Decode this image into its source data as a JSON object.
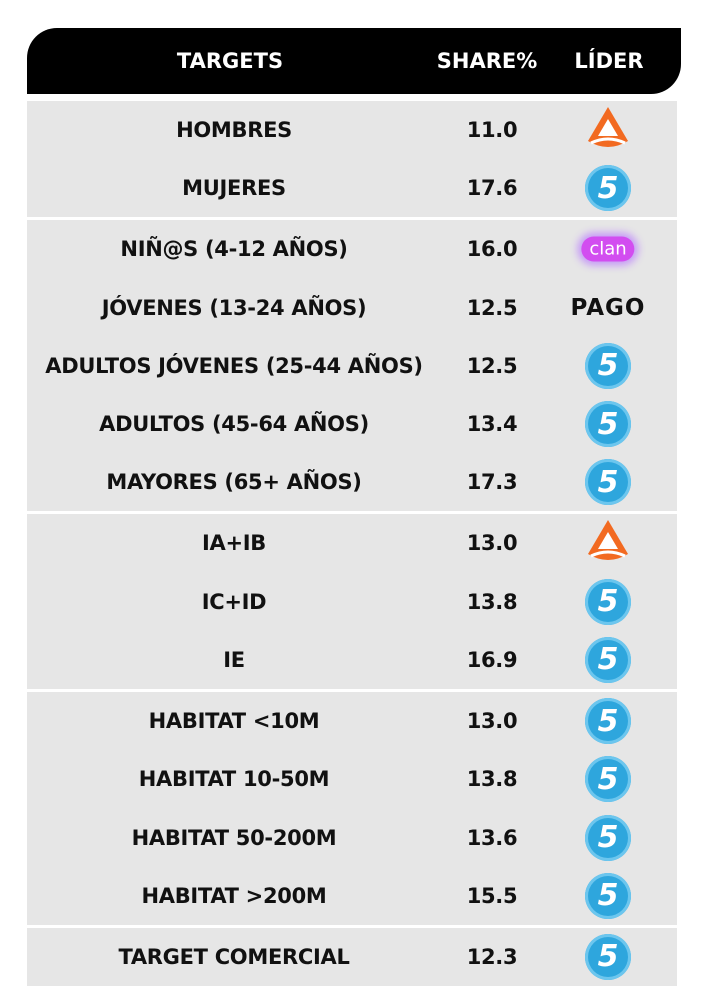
{
  "header": {
    "targets": "TARGETS",
    "share": "SHARE%",
    "leader": "LÍDER"
  },
  "groups": [
    {
      "rows": [
        {
          "target": "HOMBRES",
          "share": "11.0",
          "leader": null
        },
        {
          "target": "MUJERES",
          "share": "17.6",
          "leader": "5"
        }
      ]
    },
    {
      "rows": [
        {
          "target": "NIÑ@S (4-12 AÑOS)",
          "share": "16.0",
          "leader": "clan"
        },
        {
          "target": "JÓVENES (13-24 AÑOS)",
          "share": "12.5",
          "leader": "PAGO"
        },
        {
          "target": "ADULTOS JÓVENES (25-44 AÑOS)",
          "share": "12.5",
          "leader": "5"
        },
        {
          "target": "ADULTOS (45-64 AÑOS)",
          "share": "13.4",
          "leader": "5"
        },
        {
          "target": "MAYORES (65+ AÑOS)",
          "share": "17.3",
          "leader": "5"
        }
      ]
    },
    {
      "rows": [
        {
          "target": "IA+IB",
          "share": "13.0",
          "leader": null
        },
        {
          "target": "IC+ID",
          "share": "13.8",
          "leader": "5"
        },
        {
          "target": "IE",
          "share": "16.9",
          "leader": "5"
        }
      ]
    },
    {
      "rows": [
        {
          "target": "HABITAT <10M",
          "share": "13.0",
          "leader": "5"
        },
        {
          "target": "HABITAT 10-50M",
          "share": "13.8",
          "leader": "5"
        },
        {
          "target": "HABITAT 50-200M",
          "share": "13.6",
          "leader": "5"
        },
        {
          "target": "HABITAT >200M",
          "share": "15.5",
          "leader": "5"
        }
      ]
    },
    {
      "rows": [
        {
          "target": "TARGET COMERCIAL",
          "share": "12.3",
          "leader": "5"
        }
      ]
    }
  ]
}
